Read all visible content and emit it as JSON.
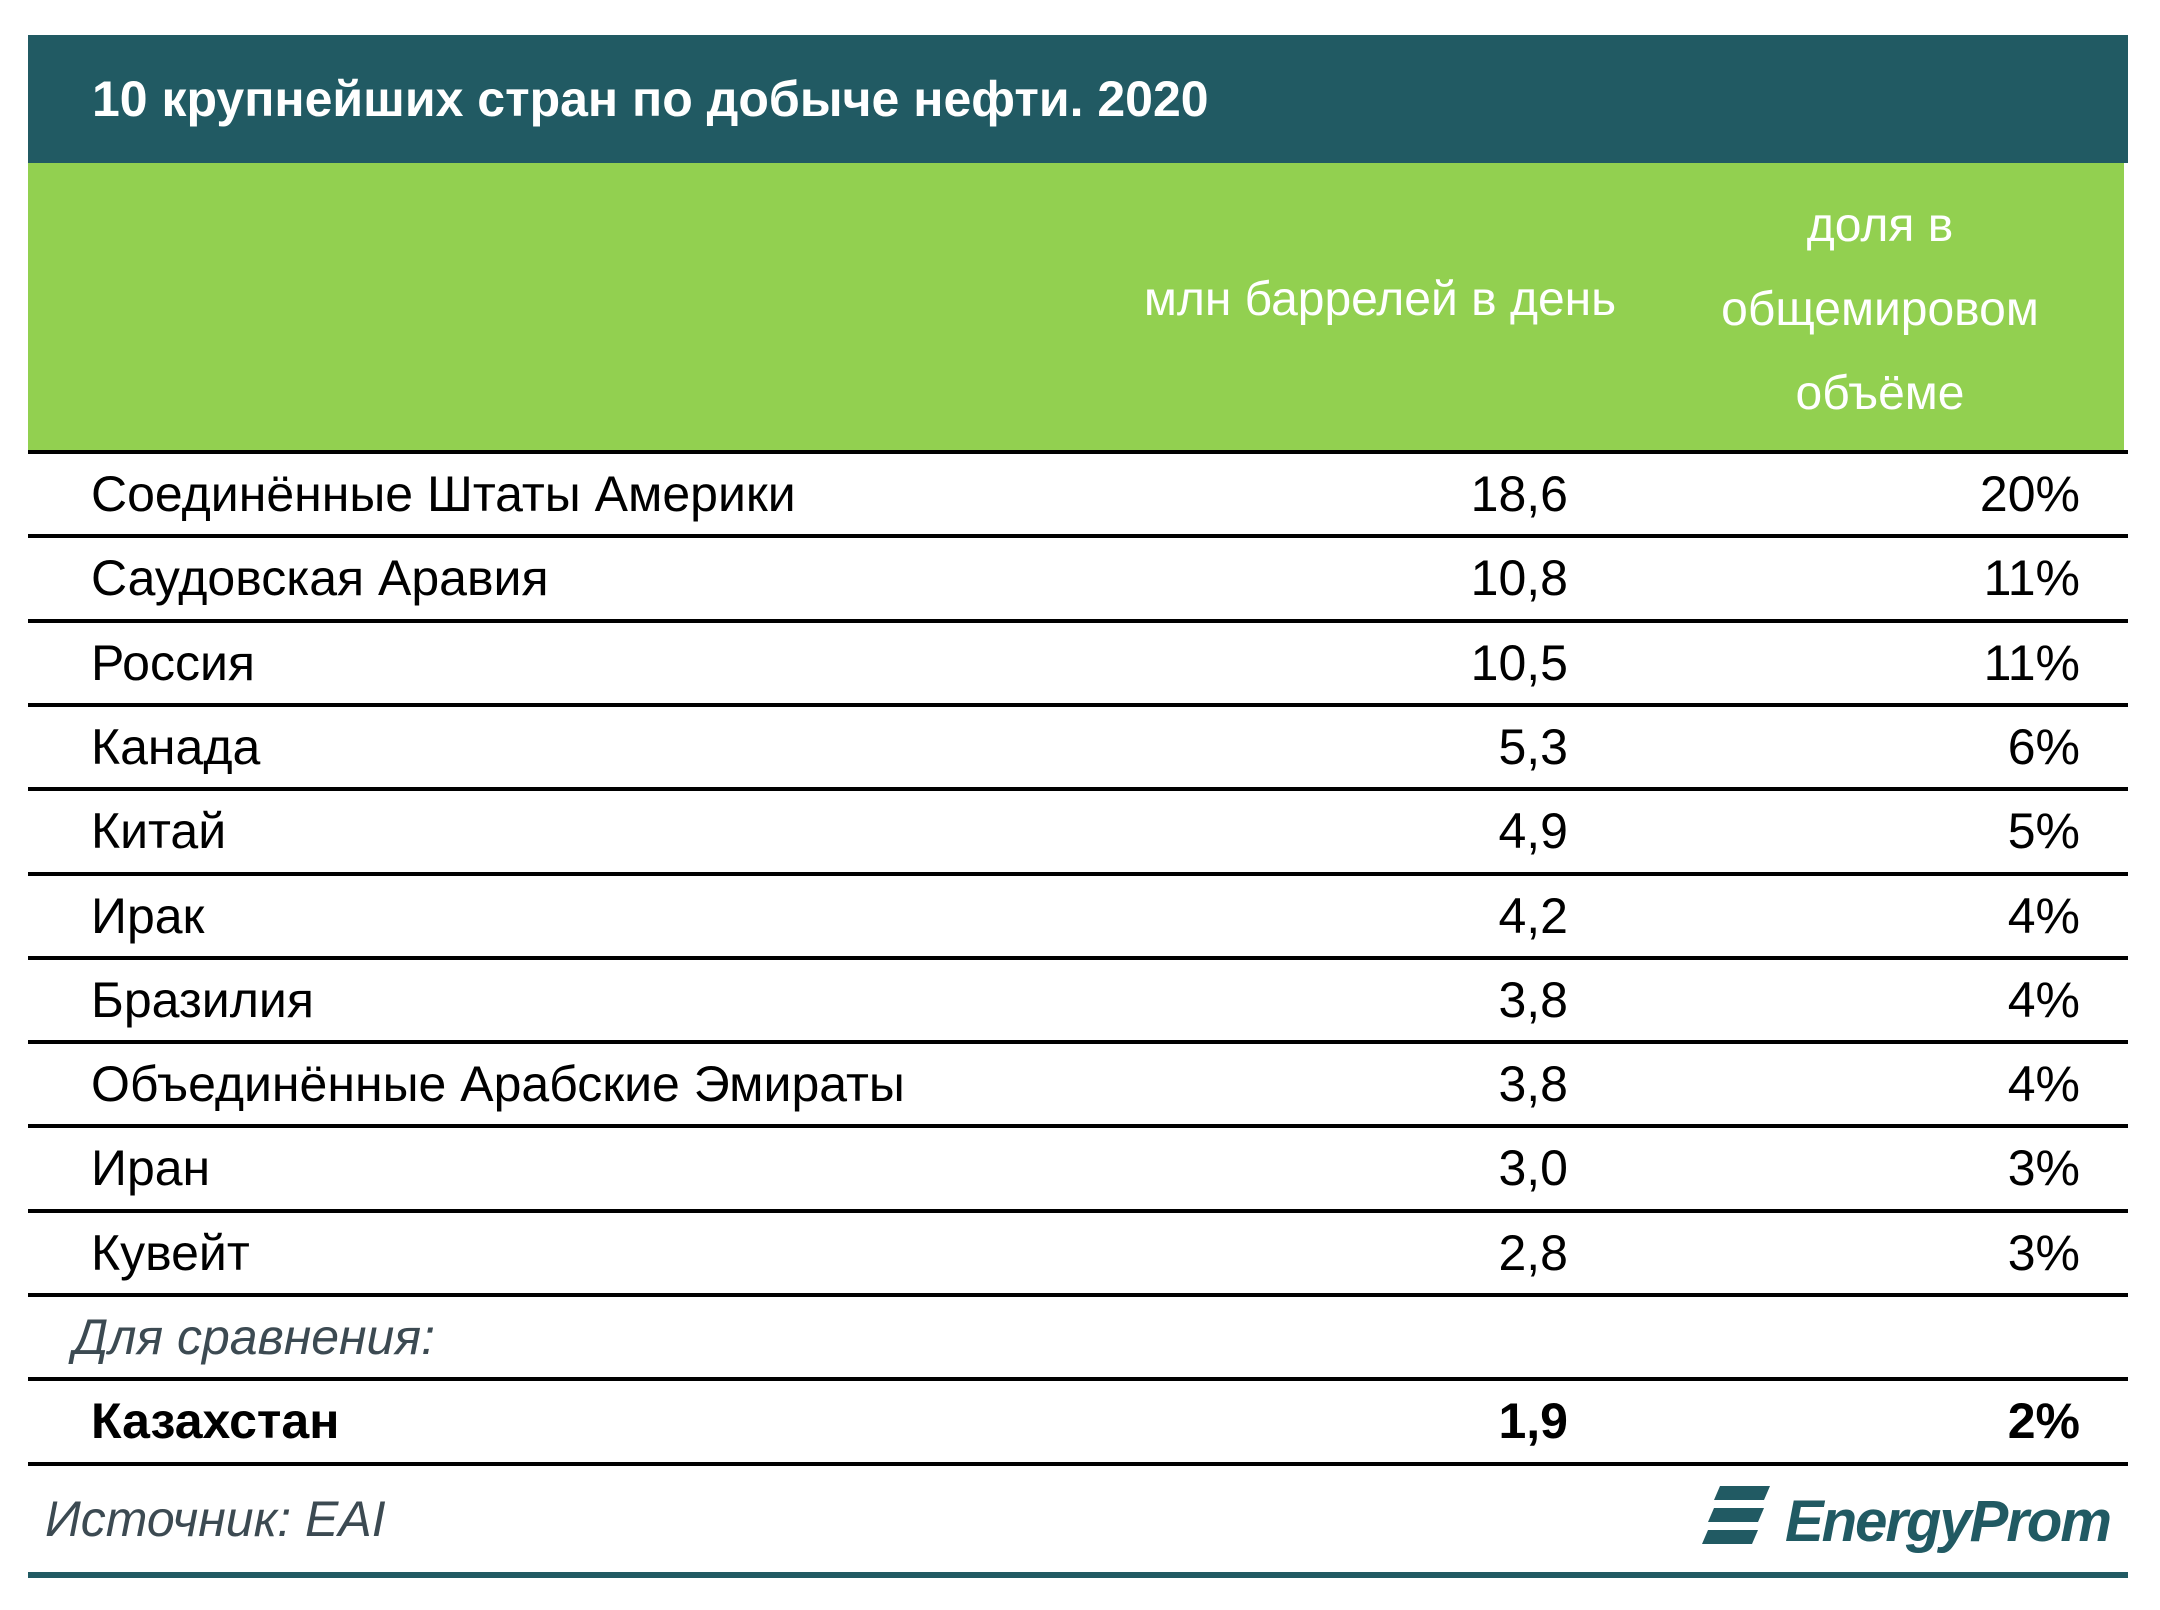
{
  "header": {
    "title": "10 крупнейших стран по добыче нефти. 2020"
  },
  "table": {
    "columns": [
      "млн баррелей в день",
      "доля в общемировом объёме"
    ],
    "rows": [
      [
        "Соединённые Штаты Америки",
        "18,6",
        "20%"
      ],
      [
        "Саудовская Аравия",
        "10,8",
        "11%"
      ],
      [
        "Россия",
        "10,5",
        "11%"
      ],
      [
        "Канада",
        "5,3",
        "6%"
      ],
      [
        "Китай",
        "4,9",
        "5%"
      ],
      [
        "Ирак",
        "4,2",
        "4%"
      ],
      [
        "Бразилия",
        "3,8",
        "4%"
      ],
      [
        "Объединённые Арабские Эмираты",
        "3,8",
        "4%"
      ],
      [
        "Иран",
        "3,0",
        "3%"
      ],
      [
        "Кувейт",
        "2,8",
        "3%"
      ]
    ],
    "comparison_label": "Для сравнения:",
    "comparison_row": [
      "Казахстан",
      "1,9",
      "2%"
    ]
  },
  "footer": {
    "source": "Источник: EAI",
    "logo": "EnergyProm"
  }
}
